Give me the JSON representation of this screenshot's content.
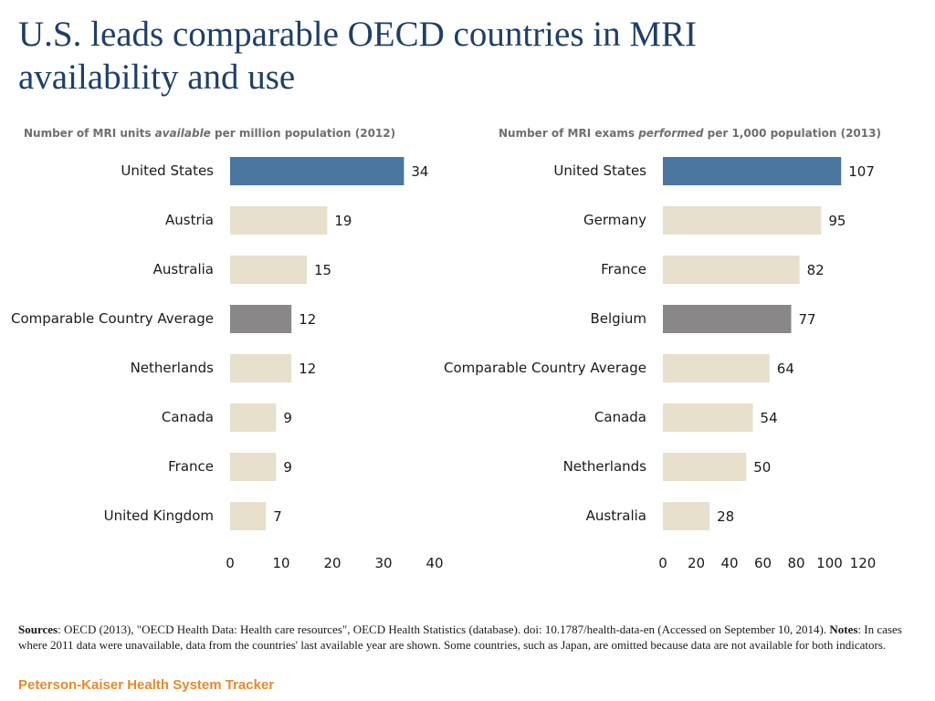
{
  "page": {
    "title": "U.S. leads comparable OECD countries in MRI availability and use"
  },
  "colors": {
    "us": "#4a76a0",
    "average": "#8a8788",
    "other": "#e6e0cc",
    "title": "#1f3f66",
    "brand": "#e8892b"
  },
  "chart_data": [
    {
      "type": "bar",
      "orientation": "horizontal",
      "title_pre": "Number of MRI units ",
      "title_em": "available",
      "title_post": " per million population (2012)",
      "categories": [
        "United States",
        "Austria",
        "Australia",
        "Comparable Country Average",
        "Netherlands",
        "Canada",
        "France",
        "United Kingdom"
      ],
      "values": [
        34,
        19,
        15,
        12,
        12,
        9,
        9,
        7
      ],
      "value_labels": [
        "34",
        "19",
        "15",
        "12",
        "12",
        "9",
        "9",
        "7"
      ],
      "highlight": [
        "us",
        "other",
        "other",
        "average",
        "other",
        "other",
        "other",
        "other"
      ],
      "xlim": [
        0,
        40
      ],
      "ticks": [
        "0",
        "10",
        "20",
        "30",
        "40"
      ],
      "tick_values": [
        0,
        10,
        20,
        30,
        40
      ]
    },
    {
      "type": "bar",
      "orientation": "horizontal",
      "title_pre": "Number of MRI exams ",
      "title_em": "performed",
      "title_post": "  per 1,000 population (2013)",
      "categories": [
        "United States",
        "Germany",
        "France",
        "Belgium",
        "Comparable Country Average",
        "Canada",
        "Netherlands",
        "Australia"
      ],
      "values": [
        107,
        95,
        82,
        77,
        64,
        54,
        50,
        28
      ],
      "value_labels": [
        "107",
        "95",
        "82",
        "77",
        "64",
        "54",
        "50",
        "28"
      ],
      "highlight": [
        "us",
        "other",
        "other",
        "average",
        "other",
        "other",
        "other",
        "other"
      ],
      "xlim": [
        0,
        120
      ],
      "ticks": [
        "0",
        "20",
        "40",
        "60",
        "80",
        "100",
        "120"
      ],
      "tick_values": [
        0,
        20,
        40,
        60,
        80,
        100,
        120
      ]
    }
  ],
  "footer": {
    "sources_label": "Sources",
    "sources_text": ": OECD (2013), \"OECD Health Data: Health care resources\", OECD Health Statistics (database). doi: 10.1787/health-data-en (Accessed on September 10, 2014). ",
    "notes_label": "Notes",
    "notes_text": ": In cases where 2011 data were unavailable, data from the countries' last available year are shown.  Some countries, such as Japan, are omitted because data are not available for both indicators.",
    "brand": "Peterson-Kaiser Health System Tracker"
  }
}
